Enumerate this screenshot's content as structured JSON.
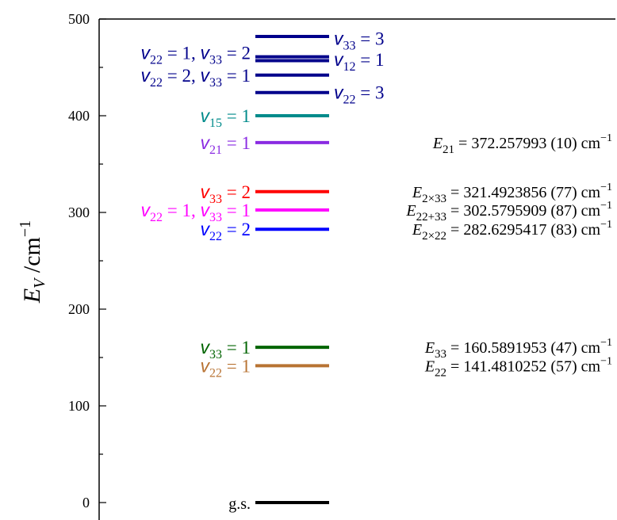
{
  "chart_data": {
    "type": "energy-level-diagram",
    "ylabel": {
      "main": "E",
      "sub": "V",
      "unit": " /cm",
      "sup": "−1"
    },
    "ylim": [
      0,
      500
    ],
    "yticks": [
      0,
      100,
      200,
      300,
      400,
      500
    ],
    "levels": [
      {
        "energy": 0,
        "color": "#000000"
      },
      {
        "energy": 141.48,
        "color": "#b87333"
      },
      {
        "energy": 160.59,
        "color": "#006400"
      },
      {
        "energy": 282.63,
        "color": "#0000ff"
      },
      {
        "energy": 302.58,
        "color": "#ff00ff"
      },
      {
        "energy": 321.49,
        "color": "#ff0000"
      },
      {
        "energy": 372.26,
        "color": "#8a2be2"
      },
      {
        "energy": 400,
        "color": "#008b8b"
      },
      {
        "energy": 424,
        "color": "#00008b"
      },
      {
        "energy": 442,
        "color": "#00008b"
      },
      {
        "energy": 457,
        "color": "#00008b"
      },
      {
        "energy": 461,
        "color": "#00008b"
      },
      {
        "energy": 482,
        "color": "#00008b"
      }
    ],
    "left_labels": [
      {
        "energy": 0,
        "label": "g.s.",
        "color": "#000000"
      },
      {
        "energy": 141.48,
        "color": "#b87333",
        "parts": [
          {
            "v": "22",
            "n": "1"
          }
        ]
      },
      {
        "energy": 160.59,
        "color": "#006400",
        "parts": [
          {
            "v": "33",
            "n": "1"
          }
        ]
      },
      {
        "energy": 282.63,
        "color": "#0000ff",
        "parts": [
          {
            "v": "22",
            "n": "2"
          }
        ]
      },
      {
        "energy": 302.58,
        "color": "#ff00ff",
        "parts": [
          {
            "v": "22",
            "n": "1"
          },
          {
            "v": "33",
            "n": "1"
          }
        ]
      },
      {
        "energy": 321.49,
        "color": "#ff0000",
        "parts": [
          {
            "v": "33",
            "n": "2"
          }
        ]
      },
      {
        "energy": 372.26,
        "color": "#8a2be2",
        "parts": [
          {
            "v": "21",
            "n": "1"
          }
        ]
      },
      {
        "energy": 400,
        "color": "#008b8b",
        "parts": [
          {
            "v": "15",
            "n": "1"
          }
        ]
      },
      {
        "energy": 442,
        "color": "#00008b",
        "parts": [
          {
            "v": "22",
            "n": "2"
          },
          {
            "v": "33",
            "n": "1"
          }
        ]
      },
      {
        "energy": 465,
        "color": "#00008b",
        "parts": [
          {
            "v": "22",
            "n": "1"
          },
          {
            "v": "33",
            "n": "2"
          }
        ]
      }
    ],
    "right_state_labels": [
      {
        "energy": 424,
        "color": "#00008b",
        "parts": [
          {
            "v": "22",
            "n": "3"
          }
        ]
      },
      {
        "energy": 458,
        "color": "#00008b",
        "parts": [
          {
            "v": "12",
            "n": "1"
          }
        ]
      },
      {
        "energy": 480,
        "color": "#00008b",
        "parts": [
          {
            "v": "33",
            "n": "3"
          }
        ]
      }
    ],
    "energy_annotations": [
      {
        "energy": 141.48,
        "sub": "22",
        "value": "141.4810252 (57) cm"
      },
      {
        "energy": 160.59,
        "sub": "33",
        "value": "160.5891953 (47) cm"
      },
      {
        "energy": 282.63,
        "sub": "2×22",
        "value": "282.6295417 (83) cm"
      },
      {
        "energy": 302.58,
        "sub": "22+33",
        "value": "302.5795909 (87) cm"
      },
      {
        "energy": 321.49,
        "sub": "2×33",
        "value": "321.4923856 (77) cm"
      },
      {
        "energy": 372.26,
        "sub": "21",
        "value": "372.257993 (10) cm"
      }
    ],
    "unit_sup": "−1"
  }
}
